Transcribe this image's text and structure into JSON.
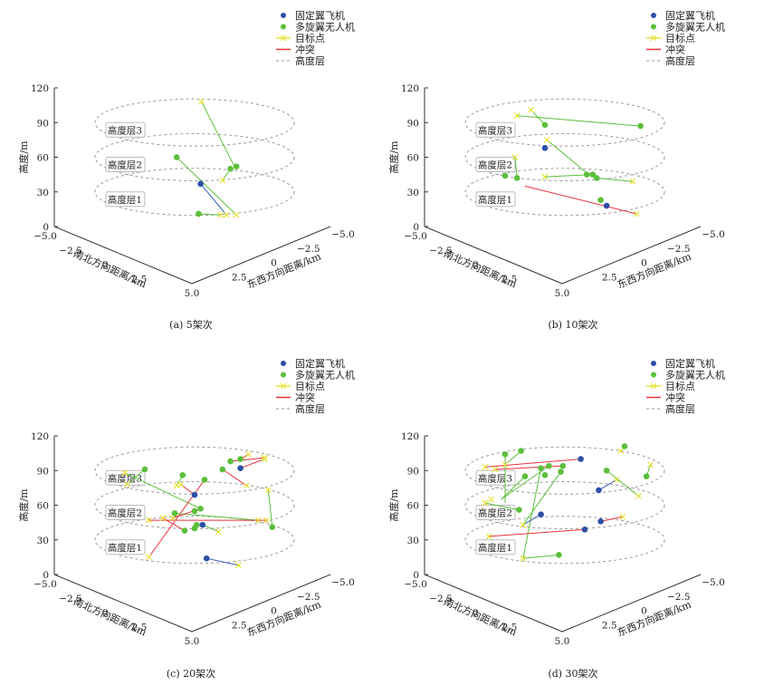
{
  "figure": {
    "legend": [
      {
        "label": "固定翼飞机",
        "kind": "dot",
        "color": "#2c4fa8"
      },
      {
        "label": "多旋翼无人机",
        "kind": "dot",
        "color": "#5bbf3a"
      },
      {
        "label": "目标点",
        "kind": "cross-line",
        "color": "#f0e640"
      },
      {
        "label": "冲突",
        "kind": "line",
        "color": "#e8333a"
      },
      {
        "label": "高度层",
        "kind": "dashed",
        "color": "#999999"
      }
    ],
    "layer_labels": [
      "高度层3",
      "高度层2",
      "高度层1"
    ]
  },
  "chart_data": [
    {
      "type": "scatter",
      "projection": "3d",
      "caption": "(a)  5架次",
      "zlabel": "高度/m",
      "xlabel": "南北方向距离/km",
      "ylabel": "东西方向距离/km",
      "zticks": [
        "0",
        "30",
        "60",
        "90",
        "120"
      ],
      "xticks": [
        "−5.0",
        "−2.5",
        "0",
        "2.5",
        "5.0"
      ],
      "yticks": [
        "−5.0",
        "−2.5",
        "0",
        "2.5",
        "5.0"
      ],
      "zlim": [
        0,
        120
      ],
      "layers": [
        30,
        60,
        90
      ],
      "points": [
        {
          "type": "fixed",
          "u": 0.3,
          "z": 37
        },
        {
          "type": "multi",
          "u": -0.9,
          "z": 60
        },
        {
          "type": "multi",
          "u": 1.8,
          "z": 50
        },
        {
          "type": "multi",
          "u": 2.1,
          "z": 52
        },
        {
          "type": "multi",
          "u": 0.2,
          "z": 11
        }
      ],
      "targets": [
        {
          "u": 0.35,
          "z": 108
        },
        {
          "u": 1.4,
          "z": 40
        },
        {
          "u": 1.3,
          "z": 10
        },
        {
          "u": 1.6,
          "z": 10
        },
        {
          "u": 2.1,
          "z": 10
        }
      ],
      "segments": [
        {
          "kind": "multi",
          "from": {
            "u": 0.35,
            "z": 108
          },
          "to": {
            "u": 2.0,
            "z": 52
          }
        },
        {
          "kind": "multi",
          "from": {
            "u": 1.4,
            "z": 40
          },
          "to": {
            "u": 1.8,
            "z": 50
          }
        },
        {
          "kind": "multi",
          "from": {
            "u": -0.9,
            "z": 60
          },
          "to": {
            "u": 2.1,
            "z": 10
          }
        },
        {
          "kind": "fixed",
          "from": {
            "u": 0.3,
            "z": 37
          },
          "to": {
            "u": 1.6,
            "z": 10
          }
        },
        {
          "kind": "multi",
          "from": {
            "u": 0.2,
            "z": 11
          },
          "to": {
            "u": 1.3,
            "z": 10
          }
        }
      ]
    },
    {
      "type": "scatter",
      "projection": "3d",
      "caption": "(b)  10架次",
      "zlabel": "高度/m",
      "xlabel": "南北方向距离/km",
      "ylabel": "东西方向距离/km",
      "zticks": [
        "0",
        "30",
        "60",
        "90",
        "120"
      ],
      "xticks": [
        "−5.0",
        "−2.5",
        "0",
        "2.5",
        "5.0"
      ],
      "yticks": [
        "−5.0",
        "−2.5",
        "0",
        "2.5",
        "5.0"
      ],
      "zlim": [
        0,
        120
      ],
      "layers": [
        30,
        60,
        90
      ],
      "points": [
        {
          "type": "multi",
          "u": -1.0,
          "z": 88
        },
        {
          "type": "multi",
          "u": 3.8,
          "z": 87
        },
        {
          "type": "fixed",
          "u": -1.0,
          "z": 68
        },
        {
          "type": "multi",
          "u": -3.0,
          "z": 44
        },
        {
          "type": "multi",
          "u": -2.4,
          "z": 42
        },
        {
          "type": "multi",
          "u": 1.1,
          "z": 45
        },
        {
          "type": "multi",
          "u": 1.4,
          "z": 45
        },
        {
          "type": "multi",
          "u": 1.6,
          "z": 42
        },
        {
          "type": "multi",
          "u": 1.8,
          "z": 23
        },
        {
          "type": "fixed",
          "u": 2.1,
          "z": 18
        }
      ],
      "targets": [
        {
          "u": -1.7,
          "z": 101
        },
        {
          "u": -2.4,
          "z": 96
        },
        {
          "u": -0.9,
          "z": 75
        },
        {
          "u": -1.0,
          "z": 43
        },
        {
          "u": 3.4,
          "z": 39
        },
        {
          "u": 3.6,
          "z": 11
        },
        {
          "u": -2.5,
          "z": 60
        }
      ],
      "segments": [
        {
          "kind": "multi",
          "from": {
            "u": -1.7,
            "z": 101
          },
          "to": {
            "u": -1.0,
            "z": 88
          }
        },
        {
          "kind": "multi",
          "from": {
            "u": -2.4,
            "z": 96
          },
          "to": {
            "u": 3.8,
            "z": 87
          }
        },
        {
          "kind": "multi",
          "from": {
            "u": -0.9,
            "z": 75
          },
          "to": {
            "u": 1.2,
            "z": 45
          }
        },
        {
          "kind": "multi",
          "from": {
            "u": -1.0,
            "z": 43
          },
          "to": {
            "u": 1.4,
            "z": 45
          }
        },
        {
          "kind": "multi",
          "from": {
            "u": 1.6,
            "z": 42
          },
          "to": {
            "u": 3.4,
            "z": 39
          }
        },
        {
          "kind": "multi",
          "from": {
            "u": -2.5,
            "z": 60
          },
          "to": {
            "u": -2.4,
            "z": 42
          }
        },
        {
          "kind": "conflict",
          "from": {
            "u": -2.0,
            "z": 35
          },
          "to": {
            "u": 3.6,
            "z": 11
          }
        }
      ]
    },
    {
      "type": "scatter",
      "projection": "3d",
      "caption": "(c)  20架次",
      "zlabel": "高度/m",
      "xlabel": "南北方向距离/km",
      "ylabel": "东西方向距离/km",
      "zticks": [
        "0",
        "30",
        "60",
        "90",
        "120"
      ],
      "xticks": [
        "−5.0",
        "−2.5",
        "0",
        "2.5",
        "5.0"
      ],
      "yticks": [
        "−5.0",
        "−2.5",
        "0",
        "2.5",
        "5.0"
      ],
      "zlim": [
        0,
        120
      ],
      "layers": [
        30,
        60,
        90
      ],
      "points": [
        {
          "type": "multi",
          "u": -2.5,
          "z": 91
        },
        {
          "type": "multi",
          "u": -0.6,
          "z": 86
        },
        {
          "type": "multi",
          "u": 0.5,
          "z": 82
        },
        {
          "type": "multi",
          "u": 1.4,
          "z": 91
        },
        {
          "type": "multi",
          "u": 1.8,
          "z": 98
        },
        {
          "type": "multi",
          "u": 2.3,
          "z": 100
        },
        {
          "type": "fixed",
          "u": 2.3,
          "z": 92
        },
        {
          "type": "fixed",
          "u": 0.0,
          "z": 69
        },
        {
          "type": "multi",
          "u": 0.3,
          "z": 57
        },
        {
          "type": "multi",
          "u": 0.0,
          "z": 55
        },
        {
          "type": "multi",
          "u": -1.0,
          "z": 53
        },
        {
          "type": "multi",
          "u": 0.1,
          "z": 43
        },
        {
          "type": "fixed",
          "u": 0.4,
          "z": 43
        },
        {
          "type": "multi",
          "u": 0.0,
          "z": 40
        },
        {
          "type": "multi",
          "u": -0.5,
          "z": 38
        },
        {
          "type": "multi",
          "u": 3.9,
          "z": 41
        },
        {
          "type": "fixed",
          "u": 0.6,
          "z": 14
        }
      ],
      "targets": [
        {
          "u": -3.5,
          "z": 88
        },
        {
          "u": -3.4,
          "z": 78
        },
        {
          "u": -0.9,
          "z": 77
        },
        {
          "u": -0.7,
          "z": 78
        },
        {
          "u": 2.7,
          "z": 104
        },
        {
          "u": 3.5,
          "z": 101
        },
        {
          "u": 3.5,
          "z": 100
        },
        {
          "u": 2.6,
          "z": 77
        },
        {
          "u": 3.7,
          "z": 73
        },
        {
          "u": -1.1,
          "z": 49
        },
        {
          "u": -1.6,
          "z": 49
        },
        {
          "u": -2.3,
          "z": 47
        },
        {
          "u": 3.2,
          "z": 47
        },
        {
          "u": 3.6,
          "z": 47
        },
        {
          "u": 1.2,
          "z": 37
        },
        {
          "u": -2.3,
          "z": 15
        },
        {
          "u": 2.2,
          "z": 8
        }
      ],
      "segments": [
        {
          "kind": "multi",
          "from": {
            "u": -2.5,
            "z": 91
          },
          "to": {
            "u": -3.4,
            "z": 78
          }
        },
        {
          "kind": "multi",
          "from": {
            "u": -3.5,
            "z": 88
          },
          "to": {
            "u": 0.3,
            "z": 57
          }
        },
        {
          "kind": "multi",
          "from": {
            "u": -0.6,
            "z": 86
          },
          "to": {
            "u": -0.9,
            "z": 77
          }
        },
        {
          "kind": "conflict",
          "from": {
            "u": -0.7,
            "z": 78
          },
          "to": {
            "u": 0.0,
            "z": 69
          }
        },
        {
          "kind": "conflict",
          "from": {
            "u": 1.8,
            "z": 98
          },
          "to": {
            "u": 3.5,
            "z": 101
          }
        },
        {
          "kind": "conflict",
          "from": {
            "u": 2.3,
            "z": 100
          },
          "to": {
            "u": 2.7,
            "z": 104
          }
        },
        {
          "kind": "conflict",
          "from": {
            "u": 2.3,
            "z": 92
          },
          "to": {
            "u": 3.5,
            "z": 100
          }
        },
        {
          "kind": "conflict",
          "from": {
            "u": 1.4,
            "z": 91
          },
          "to": {
            "u": 2.6,
            "z": 77
          }
        },
        {
          "kind": "multi",
          "from": {
            "u": 3.7,
            "z": 73
          },
          "to": {
            "u": 3.9,
            "z": 41
          }
        },
        {
          "kind": "conflict",
          "from": {
            "u": 0.5,
            "z": 82
          },
          "to": {
            "u": -2.3,
            "z": 15
          }
        },
        {
          "kind": "multi",
          "from": {
            "u": -1.0,
            "z": 53
          },
          "to": {
            "u": 3.2,
            "z": 47
          }
        },
        {
          "kind": "conflict",
          "from": {
            "u": -2.3,
            "z": 47
          },
          "to": {
            "u": 3.6,
            "z": 47
          }
        },
        {
          "kind": "conflict",
          "from": {
            "u": -1.6,
            "z": 49
          },
          "to": {
            "u": -0.5,
            "z": 38
          }
        },
        {
          "kind": "conflict",
          "from": {
            "u": -1.1,
            "z": 49
          },
          "to": {
            "u": 0.3,
            "z": 57
          }
        },
        {
          "kind": "multi",
          "from": {
            "u": 0.4,
            "z": 43
          },
          "to": {
            "u": 1.2,
            "z": 37
          }
        },
        {
          "kind": "fixed",
          "from": {
            "u": 0.6,
            "z": 14
          },
          "to": {
            "u": 2.2,
            "z": 8
          }
        }
      ]
    },
    {
      "type": "scatter",
      "projection": "3d",
      "caption": "(d)  30架次",
      "zlabel": "高度/m",
      "xlabel": "南北方向距离/km",
      "ylabel": "东西方向距离/km",
      "zticks": [
        "0",
        "30",
        "60",
        "90",
        "120"
      ],
      "xticks": [
        "−5.0",
        "−2.5",
        "0",
        "2.5",
        "5.0"
      ],
      "yticks": [
        "−5.0",
        "−2.5",
        "0",
        "2.5",
        "5.0"
      ],
      "zlim": [
        0,
        120
      ],
      "layers": [
        30,
        60,
        90
      ],
      "points": [
        {
          "type": "multi",
          "u": -3.0,
          "z": 104
        },
        {
          "type": "multi",
          "u": -2.2,
          "z": 107
        },
        {
          "type": "fixed",
          "u": 0.8,
          "z": 100
        },
        {
          "type": "multi",
          "u": -0.8,
          "z": 94
        },
        {
          "type": "multi",
          "u": -0.1,
          "z": 94
        },
        {
          "type": "multi",
          "u": -1.2,
          "z": 92
        },
        {
          "type": "multi",
          "u": -0.2,
          "z": 89
        },
        {
          "type": "multi",
          "u": -2.0,
          "z": 85
        },
        {
          "type": "multi",
          "u": -1.0,
          "z": 86
        },
        {
          "type": "multi",
          "u": 3.0,
          "z": 111
        },
        {
          "type": "multi",
          "u": 4.1,
          "z": 85
        },
        {
          "type": "multi",
          "u": 2.1,
          "z": 90
        },
        {
          "type": "fixed",
          "u": 1.7,
          "z": 73
        },
        {
          "type": "multi",
          "u": -2.3,
          "z": 56
        },
        {
          "type": "fixed",
          "u": -1.2,
          "z": 52
        },
        {
          "type": "fixed",
          "u": 1.0,
          "z": 39
        },
        {
          "type": "fixed",
          "u": 1.8,
          "z": 46
        },
        {
          "type": "multi",
          "u": -0.3,
          "z": 17
        }
      ],
      "targets": [
        {
          "u": -4.0,
          "z": 93
        },
        {
          "u": -3.0,
          "z": 95
        },
        {
          "u": -3.5,
          "z": 91
        },
        {
          "u": 2.8,
          "z": 107
        },
        {
          "u": 4.3,
          "z": 95
        },
        {
          "u": 2.6,
          "z": 82
        },
        {
          "u": 3.7,
          "z": 68
        },
        {
          "u": -3.7,
          "z": 65
        },
        {
          "u": -4.0,
          "z": 62
        },
        {
          "u": -2.1,
          "z": 43
        },
        {
          "u": -3.8,
          "z": 33
        },
        {
          "u": -2.1,
          "z": 14
        },
        {
          "u": 2.9,
          "z": 50
        }
      ],
      "segments": [
        {
          "kind": "conflict",
          "from": {
            "u": -4.0,
            "z": 93
          },
          "to": {
            "u": 0.8,
            "z": 100
          }
        },
        {
          "kind": "conflict",
          "from": {
            "u": -3.5,
            "z": 91
          },
          "to": {
            "u": -0.1,
            "z": 94
          }
        },
        {
          "kind": "multi",
          "from": {
            "u": -3.0,
            "z": 104
          },
          "to": {
            "u": -3.0,
            "z": 62
          }
        },
        {
          "kind": "multi",
          "from": {
            "u": -2.2,
            "z": 107
          },
          "to": {
            "u": -3.0,
            "z": 95
          }
        },
        {
          "kind": "multi",
          "from": {
            "u": -0.8,
            "z": 94
          },
          "to": {
            "u": -3.2,
            "z": 65
          }
        },
        {
          "kind": "multi",
          "from": {
            "u": -0.2,
            "z": 89
          },
          "to": {
            "u": -2.1,
            "z": 43
          }
        },
        {
          "kind": "multi",
          "from": {
            "u": -1.2,
            "z": 92
          },
          "to": {
            "u": -2.1,
            "z": 14
          }
        },
        {
          "kind": "multi",
          "from": {
            "u": -2.0,
            "z": 85
          },
          "to": {
            "u": -3.2,
            "z": 65
          }
        },
        {
          "kind": "multi",
          "from": {
            "u": -4.0,
            "z": 62
          },
          "to": {
            "u": -2.3,
            "z": 56
          }
        },
        {
          "kind": "fixed",
          "from": {
            "u": -1.2,
            "z": 52
          },
          "to": {
            "u": -2.1,
            "z": 43
          }
        },
        {
          "kind": "conflict",
          "from": {
            "u": -3.8,
            "z": 33
          },
          "to": {
            "u": 1.0,
            "z": 39
          }
        },
        {
          "kind": "multi",
          "from": {
            "u": -2.1,
            "z": 14
          },
          "to": {
            "u": -0.3,
            "z": 17
          }
        },
        {
          "kind": "multi",
          "from": {
            "u": 3.0,
            "z": 111
          },
          "to": {
            "u": 2.8,
            "z": 107
          }
        },
        {
          "kind": "multi",
          "from": {
            "u": 4.1,
            "z": 85
          },
          "to": {
            "u": 4.3,
            "z": 95
          }
        },
        {
          "kind": "multi",
          "from": {
            "u": 2.1,
            "z": 90
          },
          "to": {
            "u": 3.7,
            "z": 68
          }
        },
        {
          "kind": "fixed",
          "from": {
            "u": 1.7,
            "z": 73
          },
          "to": {
            "u": 2.6,
            "z": 82
          }
        },
        {
          "kind": "conflict",
          "from": {
            "u": 1.8,
            "z": 46
          },
          "to": {
            "u": 2.9,
            "z": 50
          }
        }
      ]
    }
  ]
}
